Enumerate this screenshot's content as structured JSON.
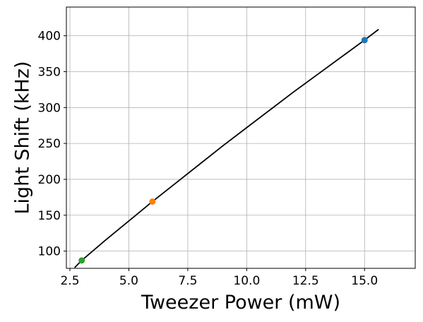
{
  "chart_data": {
    "type": "scatter",
    "title": "",
    "xlabel": "Tweezer Power (mW)",
    "ylabel": "Light Shift (kHz)",
    "xlim": [
      2.35,
      17.15
    ],
    "ylim": [
      76,
      440
    ],
    "x_ticks": [
      {
        "value": 2.5,
        "label": "2.5"
      },
      {
        "value": 5.0,
        "label": "5.0"
      },
      {
        "value": 7.5,
        "label": "7.5"
      },
      {
        "value": 10.0,
        "label": "10.0"
      },
      {
        "value": 12.5,
        "label": "12.5"
      },
      {
        "value": 15.0,
        "label": "15.0"
      }
    ],
    "y_ticks": [
      {
        "value": 100,
        "label": "100"
      },
      {
        "value": 150,
        "label": "150"
      },
      {
        "value": 200,
        "label": "200"
      },
      {
        "value": 250,
        "label": "250"
      },
      {
        "value": 300,
        "label": "300"
      },
      {
        "value": 350,
        "label": "350"
      },
      {
        "value": 400,
        "label": "400"
      }
    ],
    "grid": true,
    "points": [
      {
        "x": 15.0,
        "y": 394,
        "color": "#1f77b4"
      },
      {
        "x": 6.0,
        "y": 169,
        "color": "#ff7f0e"
      },
      {
        "x": 3.0,
        "y": 87,
        "color": "#2ca02c"
      }
    ],
    "fit_line": {
      "color": "#000000",
      "x": [
        2.7,
        3.0,
        4.0,
        5.0,
        6.0,
        7.0,
        8.0,
        9.0,
        10.0,
        11.0,
        12.0,
        13.0,
        14.0,
        15.0,
        15.6
      ],
      "y": [
        77,
        87,
        115,
        142,
        169,
        195,
        221,
        247,
        272,
        297,
        322,
        346,
        370,
        394,
        409
      ]
    }
  }
}
